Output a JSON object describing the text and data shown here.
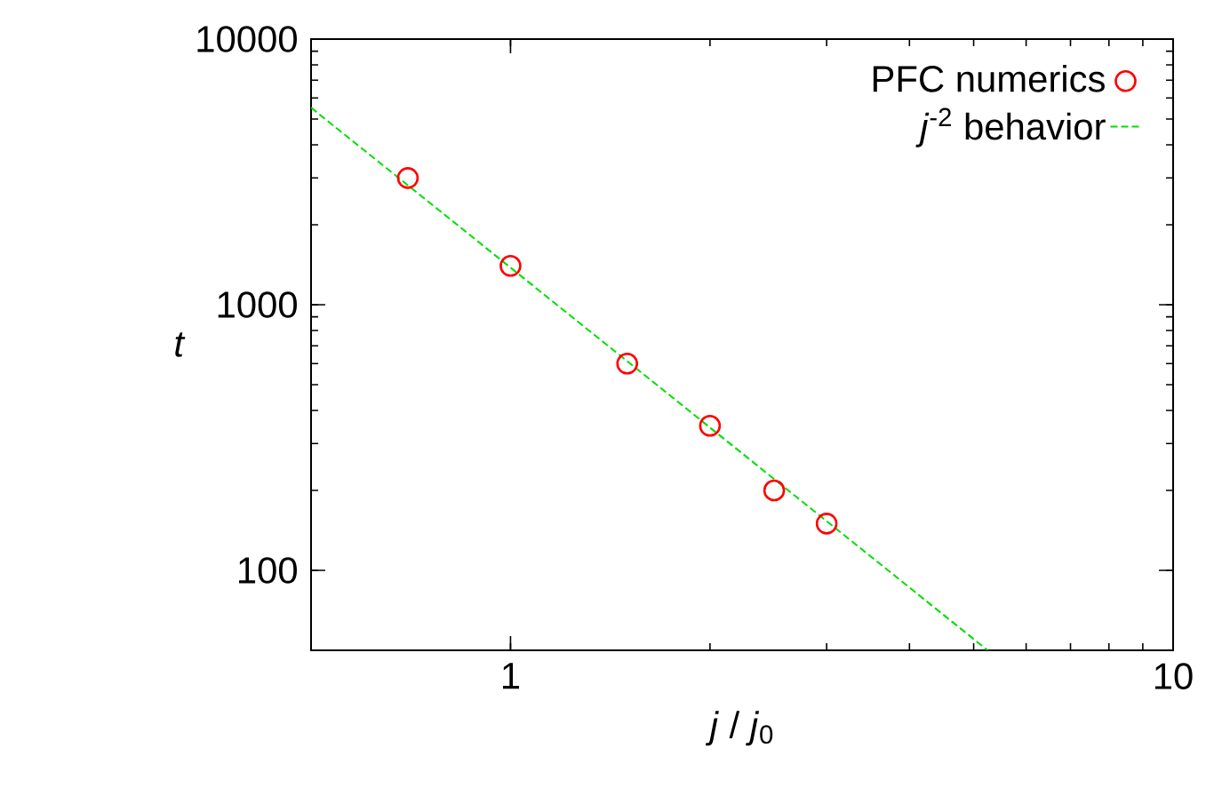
{
  "chart_data": {
    "type": "scatter",
    "xlabel": "*j* / *j*$_{0}$",
    "ylabel": "t",
    "log": "xy",
    "xlim": [
      0.5,
      10
    ],
    "ylim": [
      50,
      10000
    ],
    "xticks": [
      1,
      10
    ],
    "yticks": [
      100,
      1000,
      10000
    ],
    "grid": false,
    "legend": "top right",
    "series": [
      {
        "name": "PFC numerics",
        "color": "#ff0000",
        "marker": "circle",
        "x": [
          0.7,
          1,
          1.5,
          2,
          2.5,
          3
        ],
        "values": [
          3000,
          1400,
          600,
          350,
          200,
          150
        ]
      },
      {
        "name": "*j*$^{-2}$ behavior",
        "type": "line",
        "color": "#00dd00",
        "line_style": "dashed",
        "marker": "none",
        "x": [
          0.5,
          5.25
        ],
        "values": [
          5520,
          50
        ]
      }
    ]
  }
}
